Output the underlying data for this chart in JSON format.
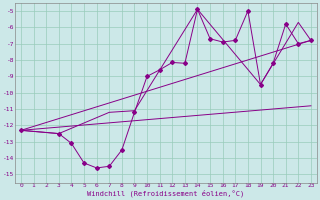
{
  "xlabel": "Windchill (Refroidissement éolien,°C)",
  "bg_color": "#cce8e8",
  "grid_color": "#99ccbb",
  "line_color": "#880088",
  "xlim": [
    -0.5,
    23.5
  ],
  "ylim": [
    -15.5,
    -4.5
  ],
  "yticks": [
    -15,
    -14,
    -13,
    -12,
    -11,
    -10,
    -9,
    -8,
    -7,
    -6,
    -5
  ],
  "xticks": [
    0,
    1,
    2,
    3,
    4,
    5,
    6,
    7,
    8,
    9,
    10,
    11,
    12,
    13,
    14,
    15,
    16,
    17,
    18,
    19,
    20,
    21,
    22,
    23
  ],
  "line1_x": [
    0,
    3,
    4,
    5,
    6,
    7,
    8,
    9,
    10,
    11,
    12,
    13,
    14,
    15,
    16,
    17,
    18,
    19,
    20,
    21,
    22,
    23
  ],
  "line1_y": [
    -12.3,
    -12.5,
    -13.1,
    -14.3,
    -14.6,
    -14.5,
    -13.5,
    -11.2,
    -9.0,
    -8.6,
    -8.15,
    -8.2,
    -4.9,
    -6.7,
    -6.9,
    -6.8,
    -5.0,
    -9.5,
    -8.2,
    -5.8,
    -7.0,
    -6.8
  ],
  "line2_x": [
    0,
    3,
    7,
    9,
    14,
    19,
    22,
    23
  ],
  "line2_y": [
    -12.3,
    -12.5,
    -11.2,
    -11.1,
    -4.9,
    -9.5,
    -5.7,
    -6.8
  ],
  "line3_x": [
    0,
    23
  ],
  "line3_y": [
    -12.3,
    -6.8
  ],
  "line4_x": [
    0,
    23
  ],
  "line4_y": [
    -12.3,
    -10.8
  ]
}
